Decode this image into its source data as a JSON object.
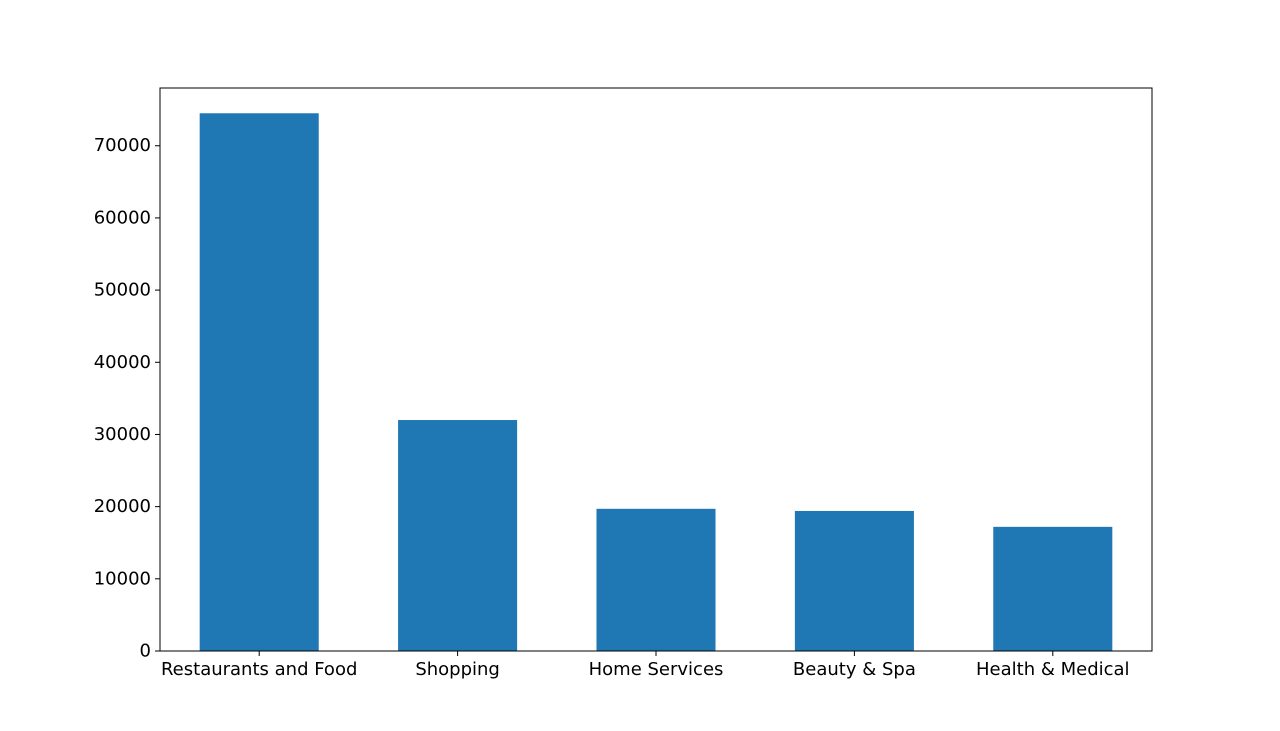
{
  "chart_data": {
    "type": "bar",
    "title": "",
    "xlabel": "",
    "ylabel": "",
    "categories": [
      "Restaurants and Food",
      "Shopping",
      "Home Services",
      "Beauty & Spa",
      "Health & Medical"
    ],
    "values": [
      74500,
      32000,
      19700,
      19400,
      17200
    ],
    "ylim": [
      0,
      78000
    ],
    "yticks": [
      0,
      10000,
      20000,
      30000,
      40000,
      50000,
      60000,
      70000
    ],
    "ytick_labels": [
      "0",
      "10000",
      "20000",
      "30000",
      "40000",
      "50000",
      "60000",
      "70000"
    ],
    "bar_color": "#1f77b4",
    "grid": false,
    "legend": "none"
  }
}
